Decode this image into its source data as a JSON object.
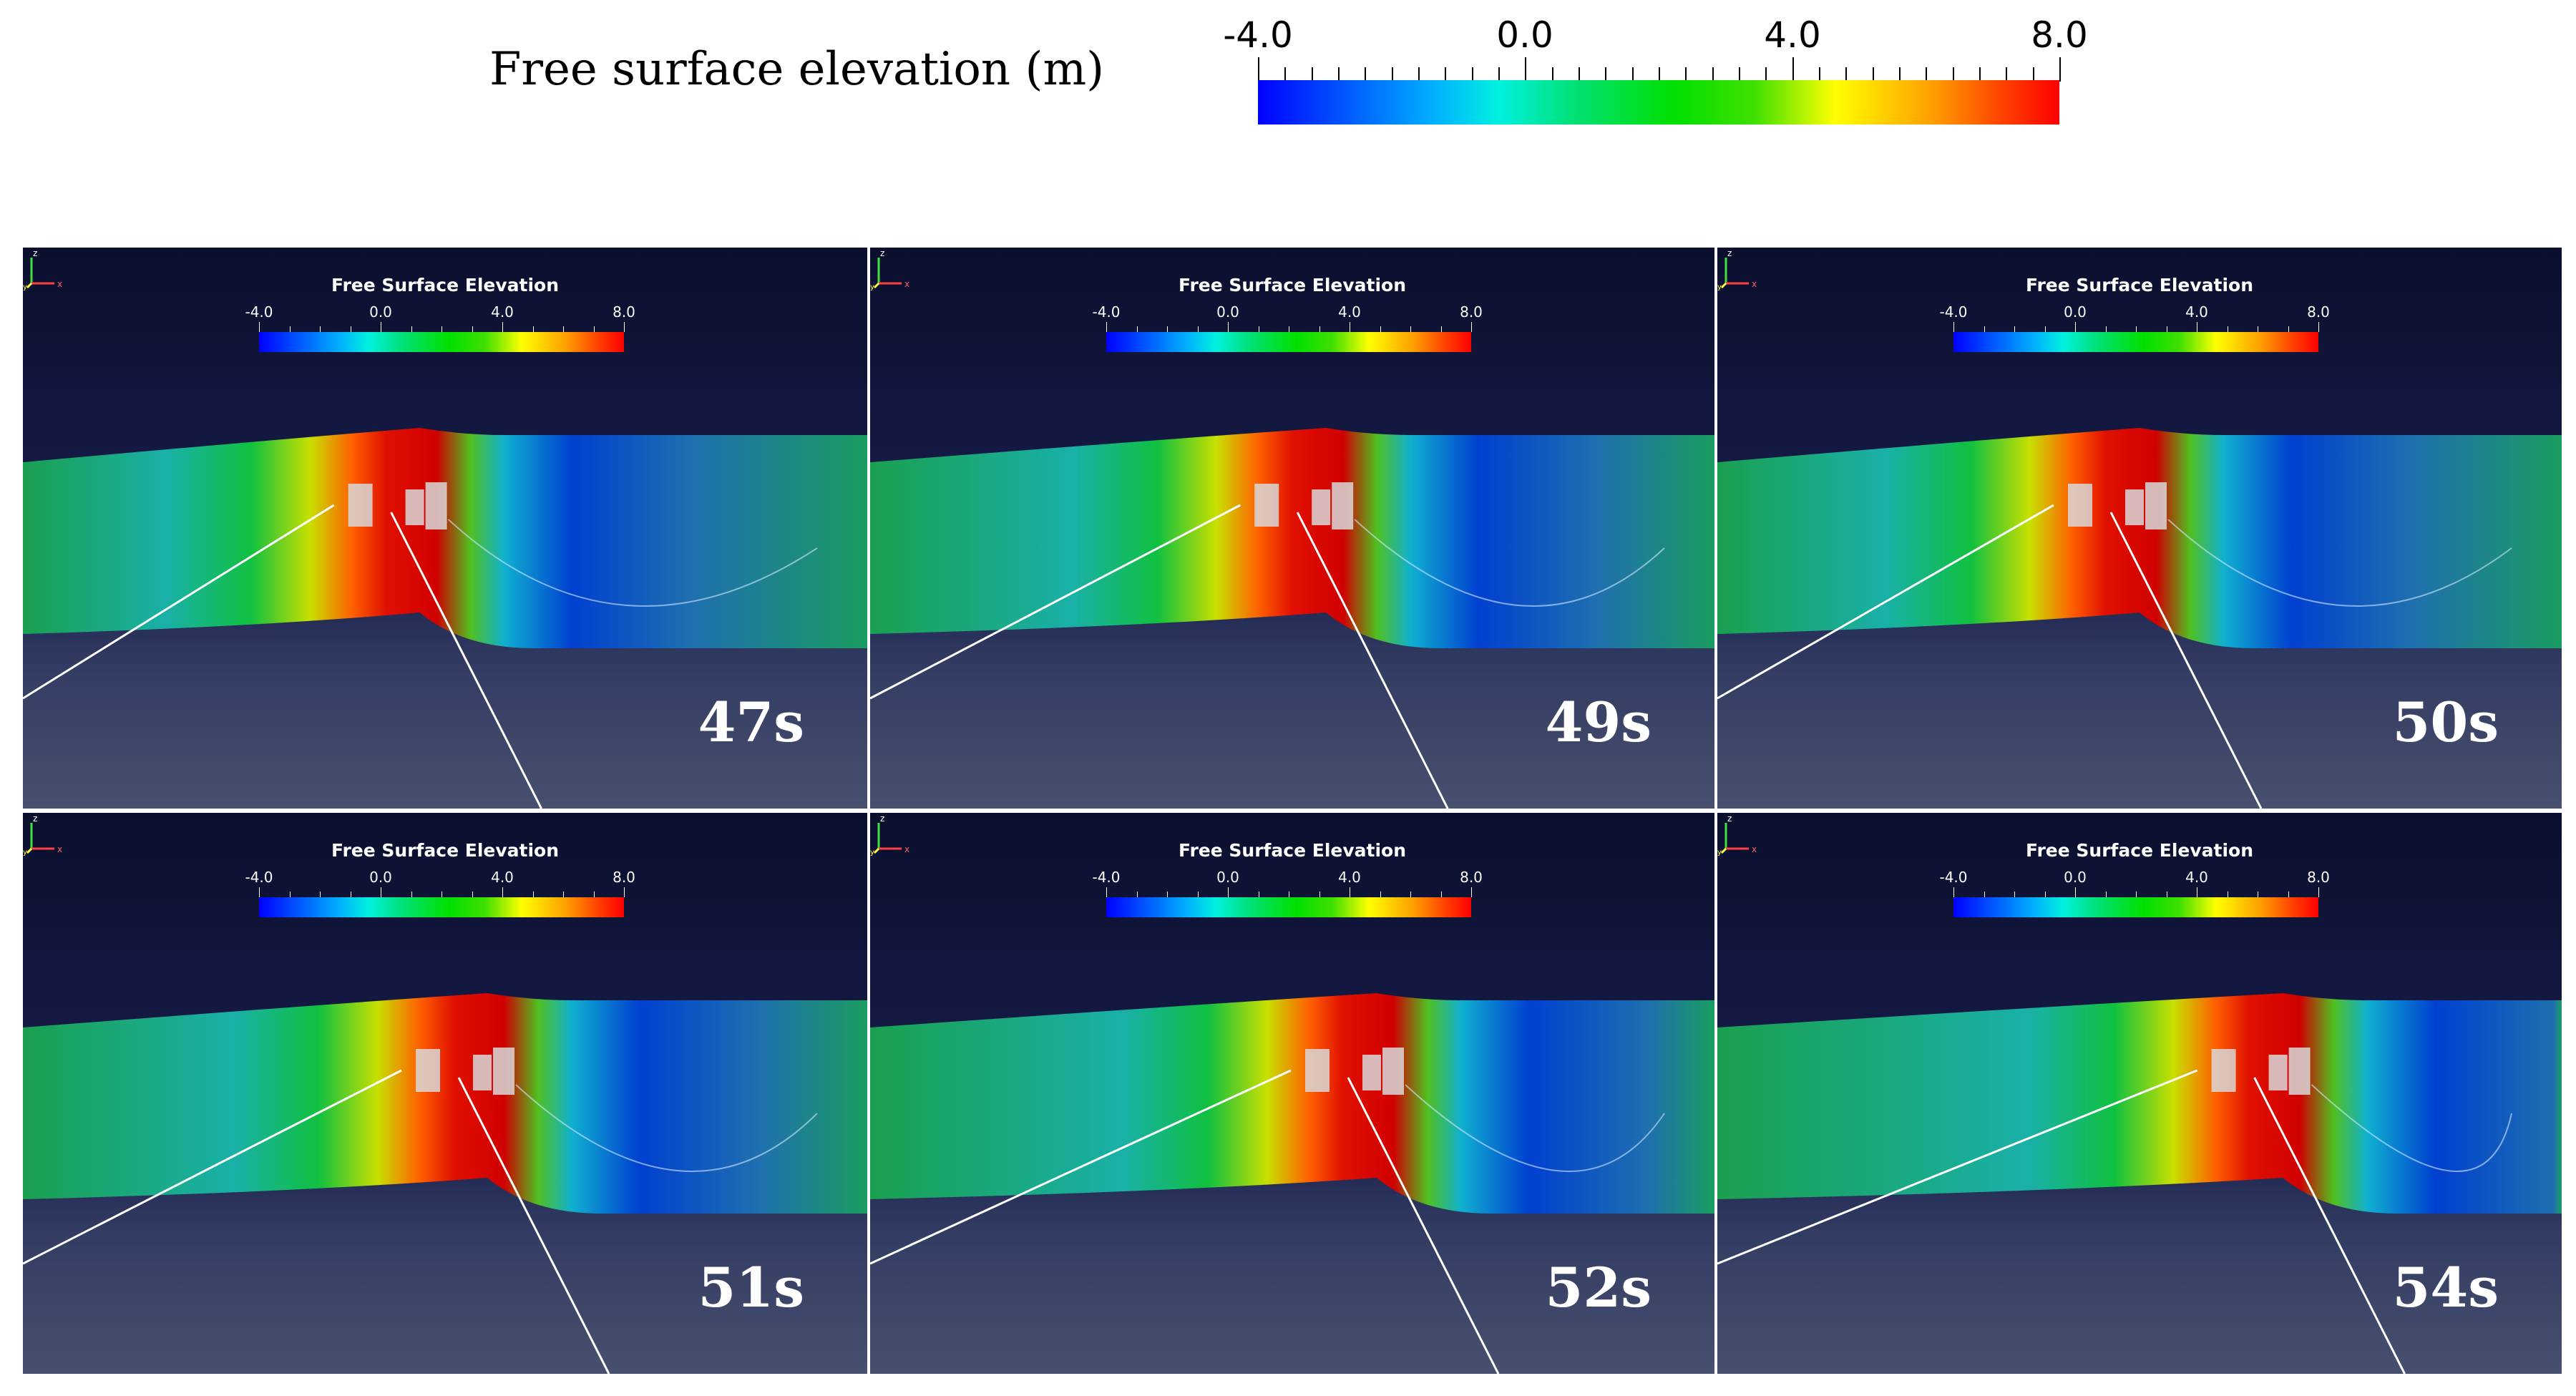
{
  "header": {
    "title": "Free surface elevation  (m)",
    "colorbar": {
      "ticks": [
        "-4.0",
        "0.0",
        "4.0",
        "8.0"
      ]
    }
  },
  "panels": [
    {
      "title": "Free Surface Elevation",
      "ticks": [
        "-4.0",
        "0.0",
        "4.0",
        "8.0"
      ],
      "time": "47s",
      "crest": 0.47
    },
    {
      "title": "Free Surface Elevation",
      "ticks": [
        "-4.0",
        "0.0",
        "4.0",
        "8.0"
      ],
      "time": "49s",
      "crest": 0.54
    },
    {
      "title": "Free Surface Elevation",
      "ticks": [
        "-4.0",
        "0.0",
        "4.0",
        "8.0"
      ],
      "time": "50s",
      "crest": 0.5
    },
    {
      "title": "Free Surface Elevation",
      "ticks": [
        "-4.0",
        "0.0",
        "4.0",
        "8.0"
      ],
      "time": "51s",
      "crest": 0.55
    },
    {
      "title": "Free Surface Elevation",
      "ticks": [
        "-4.0",
        "0.0",
        "4.0",
        "8.0"
      ],
      "time": "52s",
      "crest": 0.6
    },
    {
      "title": "Free Surface Elevation",
      "ticks": [
        "-4.0",
        "0.0",
        "4.0",
        "8.0"
      ],
      "time": "54s",
      "crest": 0.67
    }
  ],
  "axes_icon": {
    "z": "z",
    "y": "y",
    "x": "x"
  },
  "colors": {
    "sky_top": "#0b0f2e",
    "seabed": "#47506f"
  }
}
